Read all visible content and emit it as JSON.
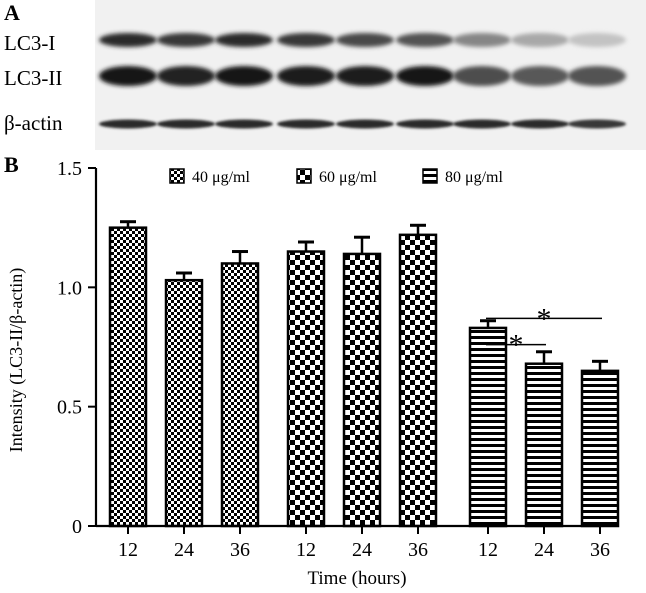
{
  "panel_a": {
    "label": "A",
    "rows": [
      "LC3-I",
      "LC3-II",
      "β-actin"
    ],
    "intensities": [
      [
        0.85,
        0.8,
        0.85,
        0.8,
        0.72,
        0.68,
        0.45,
        0.3,
        0.18
      ],
      [
        0.95,
        0.9,
        0.95,
        0.92,
        0.92,
        0.95,
        0.7,
        0.65,
        0.68
      ],
      [
        0.85,
        0.85,
        0.85,
        0.85,
        0.85,
        0.85,
        0.85,
        0.85,
        0.8
      ]
    ]
  },
  "panel_b": {
    "label": "B"
  },
  "chart_data": {
    "type": "bar",
    "ylabel": "Intensity (LC3-II/β-actin)",
    "xlabel": "Time (hours)",
    "ylim": [
      0,
      1.5
    ],
    "yticks": [
      "0",
      "0.5",
      "1.0",
      "1.5"
    ],
    "groups": [
      {
        "name": "40 μg/ml",
        "pattern": "checker-fine",
        "categories": [
          "12",
          "24",
          "36"
        ],
        "values": [
          1.25,
          1.03,
          1.1
        ],
        "errors": [
          0.025,
          0.03,
          0.05
        ]
      },
      {
        "name": "60 μg/ml",
        "pattern": "checker-coarse",
        "categories": [
          "12",
          "24",
          "36"
        ],
        "values": [
          1.15,
          1.14,
          1.22
        ],
        "errors": [
          0.04,
          0.07,
          0.04
        ]
      },
      {
        "name": "80 μg/ml",
        "pattern": "horizontal-stripes",
        "categories": [
          "12",
          "24",
          "36"
        ],
        "values": [
          0.83,
          0.68,
          0.65
        ],
        "errors": [
          0.03,
          0.05,
          0.04
        ]
      }
    ],
    "annotations": [
      {
        "type": "significance",
        "group": 2,
        "from": 0,
        "to": 1,
        "label": "*"
      },
      {
        "type": "significance",
        "group": 2,
        "from": 0,
        "to": 2,
        "label": "*"
      }
    ],
    "legend_position": "top",
    "grid": false
  }
}
